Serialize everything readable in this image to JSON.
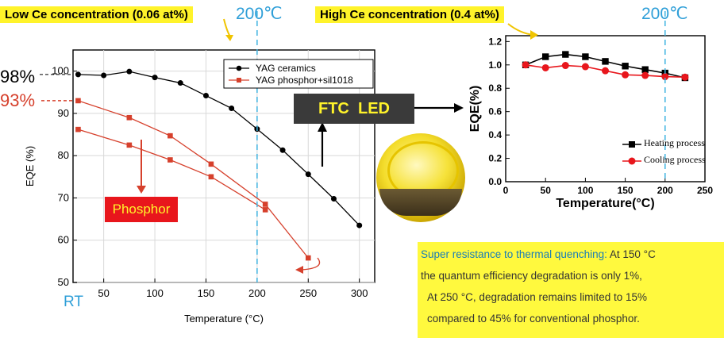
{
  "header": {
    "left_title": "Low Ce concentration (0.06 at%)",
    "left_temp": "200℃",
    "right_title": "High Ce concentration (0.4 at%)",
    "right_temp": "200℃"
  },
  "left_annotations": {
    "pct_98": "98%",
    "pct_93": "93%",
    "rt": "RT",
    "phosphor_label": "Phosphor"
  },
  "ftc_label": "FTC  LED",
  "note": {
    "line1_highlight": "Super resistance to thermal quenching:",
    "line1_rest": " At 150 °C",
    "line2": "the quantum efficiency degradation is only  1%,",
    "line3": "At 250 °C, degradation remains limited to  15%",
    "line4": "compared to  45% for conventional phosphor."
  },
  "chart_data": [
    {
      "type": "line",
      "xlabel": "Temperature (°C)",
      "ylabel": "EQE (%)",
      "xlim": [
        20,
        315
      ],
      "ylim": [
        50,
        105
      ],
      "xticks": [
        50,
        100,
        150,
        200,
        250,
        300
      ],
      "yticks": [
        50,
        60,
        70,
        80,
        90,
        100
      ],
      "legend_position": "top-right",
      "series": [
        {
          "name": "YAG ceramics",
          "color": "#000000",
          "marker": "circle",
          "x": [
            25,
            50,
            75,
            100,
            125,
            150,
            175,
            200,
            225,
            250,
            275,
            300
          ],
          "y": [
            99.2,
            99.0,
            99.9,
            98.5,
            97.2,
            94.2,
            91.2,
            86.3,
            81.3,
            75.6,
            69.8,
            63.5
          ]
        },
        {
          "name": "YAG phosphor+sil1018",
          "color": "#d6402c",
          "marker": "square",
          "x": [
            25,
            75,
            115,
            155,
            208,
            250
          ],
          "y": [
            93.0,
            89.0,
            84.7,
            78.0,
            68.5,
            55.8
          ]
        },
        {
          "name": "",
          "color": "#d6402c",
          "marker": "square",
          "x": [
            25,
            75,
            115,
            155,
            208
          ],
          "y": [
            86.2,
            82.5,
            79.0,
            75.0,
            67.2
          ]
        }
      ],
      "annotations": [
        "98%",
        "93%",
        "RT",
        "Phosphor"
      ]
    },
    {
      "type": "line",
      "xlabel": "Temperature(°C)",
      "ylabel": "EQE(%)",
      "xlim": [
        0,
        250
      ],
      "ylim": [
        0.0,
        1.25
      ],
      "xticks": [
        0,
        50,
        100,
        150,
        200,
        250
      ],
      "yticks": [
        0.0,
        0.2,
        0.4,
        0.6,
        0.8,
        1.0,
        1.2
      ],
      "legend_position": "right",
      "series": [
        {
          "name": "Heating process",
          "color": "#000000",
          "marker": "square",
          "x": [
            25,
            50,
            75,
            100,
            125,
            150,
            175,
            200,
            225
          ],
          "y": [
            1.0,
            1.07,
            1.09,
            1.07,
            1.03,
            0.99,
            0.96,
            0.93,
            0.89
          ]
        },
        {
          "name": "Cooling process",
          "color": "#e8161c",
          "marker": "circle",
          "x": [
            25,
            50,
            75,
            100,
            125,
            150,
            175,
            200,
            225
          ],
          "y": [
            1.0,
            0.975,
            0.995,
            0.985,
            0.95,
            0.915,
            0.91,
            0.9,
            0.895
          ]
        }
      ]
    }
  ]
}
